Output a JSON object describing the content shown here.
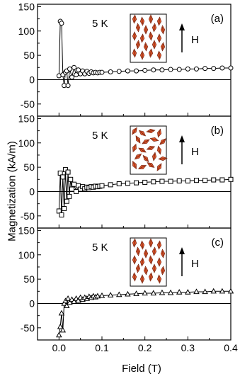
{
  "figure": {
    "ylabel": "Magnetization (kA/m)",
    "xlabel": "Field (T)"
  },
  "chart_data": [
    {
      "type": "scatter",
      "panel_label": "(a)",
      "annotation": "5 K",
      "field_arrow_label": "H",
      "inset": "particles-aligned",
      "marker": "circle",
      "xlim": [
        -0.05,
        0.4
      ],
      "ylim": [
        -75,
        155
      ],
      "xticks": [
        0.0,
        0.1,
        0.2,
        0.3,
        0.4
      ],
      "yticks": [
        -50,
        0,
        50,
        100,
        150
      ],
      "x": [
        0.0,
        0.003,
        0.006,
        0.009,
        0.012,
        0.015,
        0.018,
        0.021,
        0.025,
        0.03,
        0.035,
        0.04,
        0.045,
        0.05,
        0.055,
        0.06,
        0.065,
        0.07,
        0.075,
        0.08,
        0.085,
        0.09,
        0.095,
        0.1,
        0.12,
        0.14,
        0.16,
        0.18,
        0.2,
        0.22,
        0.24,
        0.26,
        0.28,
        0.3,
        0.32,
        0.34,
        0.36,
        0.38,
        0.4
      ],
      "y": [
        8,
        120,
        116,
        10,
        -12,
        15,
        18,
        -12,
        22,
        5,
        25,
        10,
        20,
        12,
        18,
        12,
        17,
        13,
        16,
        14,
        15,
        14,
        15,
        15,
        16,
        17,
        18,
        18,
        19,
        20,
        20,
        21,
        21,
        22,
        22,
        23,
        23,
        24,
        24
      ]
    },
    {
      "type": "scatter",
      "panel_label": "(b)",
      "annotation": "5 K",
      "field_arrow_label": "H",
      "inset": "particles-random",
      "marker": "square",
      "xlim": [
        -0.05,
        0.4
      ],
      "ylim": [
        -75,
        155
      ],
      "xticks": [
        0.0,
        0.1,
        0.2,
        0.3,
        0.4
      ],
      "yticks": [
        -50,
        0,
        50,
        100,
        150
      ],
      "x": [
        0.0,
        0.003,
        0.006,
        0.009,
        0.012,
        0.015,
        0.018,
        0.021,
        0.024,
        0.027,
        0.03,
        0.035,
        0.04,
        0.045,
        0.05,
        0.055,
        0.06,
        0.065,
        0.07,
        0.075,
        0.08,
        0.085,
        0.09,
        0.095,
        0.1,
        0.12,
        0.14,
        0.16,
        0.18,
        0.2,
        0.22,
        0.24,
        0.26,
        0.28,
        0.3,
        0.32,
        0.34,
        0.36,
        0.38,
        0.4
      ],
      "y": [
        -40,
        38,
        -48,
        30,
        -35,
        45,
        -20,
        40,
        -10,
        25,
        5,
        15,
        0,
        12,
        5,
        10,
        6,
        9,
        8,
        10,
        9,
        11,
        10,
        11,
        12,
        14,
        16,
        17,
        18,
        19,
        20,
        21,
        21,
        22,
        22,
        23,
        23,
        24,
        24,
        25
      ]
    },
    {
      "type": "scatter",
      "panel_label": "(c)",
      "annotation": "5 K",
      "field_arrow_label": "H",
      "inset": "particles-aligned",
      "marker": "triangle",
      "xlim": [
        -0.05,
        0.4
      ],
      "ylim": [
        -75,
        155
      ],
      "xticks": [
        0.0,
        0.1,
        0.2,
        0.3,
        0.4
      ],
      "yticks": [
        -50,
        0,
        50,
        100,
        150
      ],
      "x": [
        0.0,
        0.003,
        0.006,
        0.009,
        0.012,
        0.015,
        0.018,
        0.021,
        0.025,
        0.03,
        0.035,
        0.04,
        0.045,
        0.05,
        0.055,
        0.06,
        0.065,
        0.07,
        0.075,
        0.08,
        0.085,
        0.09,
        0.1,
        0.12,
        0.14,
        0.16,
        0.18,
        0.2,
        0.22,
        0.24,
        0.26,
        0.28,
        0.3,
        0.32,
        0.34,
        0.36,
        0.38,
        0.4
      ],
      "y": [
        -65,
        -48,
        -20,
        -55,
        0,
        5,
        -5,
        10,
        2,
        8,
        4,
        10,
        6,
        12,
        8,
        12,
        10,
        14,
        12,
        15,
        13,
        15,
        16,
        17,
        18,
        19,
        20,
        21,
        21,
        22,
        22,
        23,
        23,
        24,
        24,
        25,
        25,
        25
      ]
    }
  ]
}
